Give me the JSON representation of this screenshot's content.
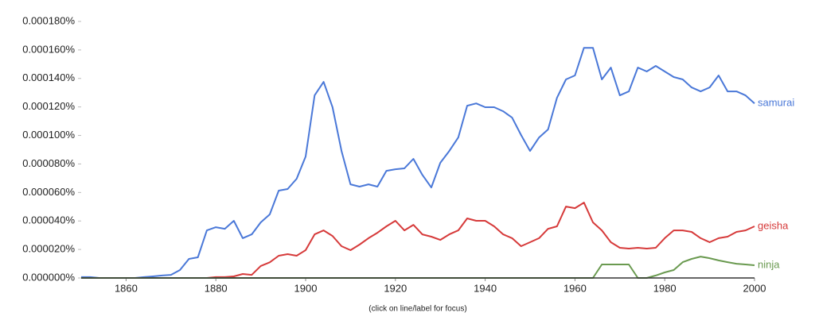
{
  "chart_data": {
    "type": "line",
    "annotation": "(click on line/label for focus)",
    "x": [
      1850,
      1852,
      1854,
      1856,
      1858,
      1860,
      1862,
      1864,
      1866,
      1868,
      1870,
      1872,
      1874,
      1876,
      1878,
      1880,
      1882,
      1884,
      1886,
      1888,
      1890,
      1892,
      1894,
      1896,
      1898,
      1900,
      1902,
      1904,
      1906,
      1908,
      1910,
      1912,
      1914,
      1916,
      1918,
      1920,
      1922,
      1924,
      1926,
      1928,
      1930,
      1932,
      1934,
      1936,
      1938,
      1940,
      1942,
      1944,
      1946,
      1948,
      1950,
      1952,
      1954,
      1956,
      1958,
      1960,
      1962,
      1964,
      1966,
      1968,
      1970,
      1972,
      1974,
      1976,
      1978,
      1980,
      1982,
      1984,
      1986,
      1988,
      1990,
      1992,
      1994,
      1996,
      1998,
      2000
    ],
    "series": [
      {
        "name": "samurai",
        "color": "#4a78d8",
        "values": [
          6e-07,
          6e-07,
          0,
          0,
          0,
          0,
          0,
          6e-07,
          1.1e-06,
          1.7e-06,
          2.2e-06,
          5.6e-06,
          1.34e-05,
          1.45e-05,
          3.34e-05,
          3.56e-05,
          3.45e-05,
          4.01e-05,
          2.79e-05,
          3.06e-05,
          3.9e-05,
          4.46e-05,
          6.13e-05,
          6.24e-05,
          6.96e-05,
          8.52e-05,
          0.0001281,
          0.0001376,
          0.0001198,
          8.91e-05,
          6.57e-05,
          6.41e-05,
          6.57e-05,
          6.41e-05,
          7.52e-05,
          7.63e-05,
          7.69e-05,
          8.36e-05,
          7.24e-05,
          6.35e-05,
          8.08e-05,
          8.91e-05,
          9.86e-05,
          0.0001209,
          0.0001225,
          0.0001198,
          0.0001198,
          0.000117,
          0.0001125,
          0.0001003,
          8.91e-05,
          9.86e-05,
          0.0001042,
          0.0001264,
          0.0001393,
          0.0001421,
          0.0001615,
          0.0001615,
          0.0001393,
          0.0001476,
          0.0001281,
          0.0001309,
          0.0001476,
          0.0001449,
          0.0001488,
          0.0001449,
          0.000141,
          0.0001393,
          0.0001337,
          0.0001309,
          0.0001337,
          0.0001421,
          0.0001309,
          0.0001309,
          0.0001281,
          0.0001225
        ]
      },
      {
        "name": "geisha",
        "color": "#d63a3a",
        "values": [
          0,
          0,
          0,
          0,
          0,
          0,
          0,
          0,
          0,
          0,
          0,
          0,
          0,
          0,
          0,
          6e-07,
          6e-07,
          1.1e-06,
          2.8e-06,
          2.2e-06,
          8.4e-06,
          1.1e-05,
          1.56e-05,
          1.67e-05,
          1.56e-05,
          1.95e-05,
          3.06e-05,
          3.34e-05,
          2.95e-05,
          2.23e-05,
          1.95e-05,
          2.34e-05,
          2.79e-05,
          3.17e-05,
          3.62e-05,
          4.01e-05,
          3.34e-05,
          3.73e-05,
          3.06e-05,
          2.9e-05,
          2.67e-05,
          3.06e-05,
          3.34e-05,
          4.18e-05,
          4.01e-05,
          4.01e-05,
          3.62e-05,
          3.06e-05,
          2.79e-05,
          2.23e-05,
          2.51e-05,
          2.79e-05,
          3.45e-05,
          3.62e-05,
          5.01e-05,
          4.9e-05,
          5.29e-05,
          3.9e-05,
          3.34e-05,
          2.51e-05,
          2.12e-05,
          2.06e-05,
          2.12e-05,
          2.06e-05,
          2.12e-05,
          2.79e-05,
          3.34e-05,
          3.34e-05,
          3.23e-05,
          2.79e-05,
          2.51e-05,
          2.79e-05,
          2.9e-05,
          3.23e-05,
          3.34e-05,
          3.62e-05
        ]
      },
      {
        "name": "ninja",
        "color": "#6a9a50",
        "values": [
          0,
          0,
          0,
          0,
          0,
          0,
          0,
          0,
          0,
          0,
          0,
          0,
          0,
          0,
          0,
          0,
          0,
          0,
          0,
          0,
          0,
          0,
          0,
          0,
          0,
          0,
          0,
          0,
          0,
          0,
          0,
          0,
          0,
          0,
          0,
          0,
          0,
          0,
          0,
          0,
          0,
          0,
          0,
          0,
          0,
          0,
          0,
          0,
          0,
          0,
          0,
          0,
          0,
          0,
          0,
          0,
          0,
          0,
          9.5e-06,
          9.5e-06,
          9.5e-06,
          9.5e-06,
          0,
          0,
          1.7e-06,
          3.9e-06,
          5.6e-06,
          1.11e-05,
          1.34e-05,
          1.5e-05,
          1.39e-05,
          1.23e-05,
          1.11e-05,
          1e-05,
          9.5e-06,
          8.9e-06
        ]
      }
    ],
    "xlim": [
      1850,
      2000
    ],
    "xticks": [
      1860,
      1880,
      1900,
      1920,
      1940,
      1960,
      1980,
      2000
    ],
    "ylim": [
      0,
      0.00018
    ],
    "yticks": [
      {
        "value": 0,
        "label": "0.000000%"
      },
      {
        "value": 2e-05,
        "label": "0.000020%"
      },
      {
        "value": 4e-05,
        "label": "0.000040%"
      },
      {
        "value": 6e-05,
        "label": "0.000060%"
      },
      {
        "value": 8e-05,
        "label": "0.000080%"
      },
      {
        "value": 0.0001,
        "label": "0.000100%"
      },
      {
        "value": 0.00012,
        "label": "0.000120%"
      },
      {
        "value": 0.00014,
        "label": "0.000140%"
      },
      {
        "value": 0.00016,
        "label": "0.000160%"
      },
      {
        "value": 0.00018,
        "label": "0.000180%"
      }
    ]
  }
}
